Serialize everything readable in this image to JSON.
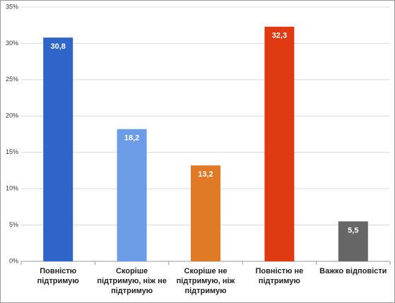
{
  "chart_data": {
    "type": "bar",
    "categories": [
      "Повністю підтримую",
      "Скоріше підтримую, ніж не підтримую",
      "Скоріше не підтримую, ніж підтримую",
      "Повністю не підтримую",
      "Важко відповісти"
    ],
    "values": [
      30.8,
      18.2,
      13.2,
      32.3,
      5.5
    ],
    "value_labels": [
      "30,8",
      "18,2",
      "13,2",
      "32,3",
      "5,5"
    ],
    "colors": [
      "#2f64c9",
      "#6c9ce8",
      "#e07a27",
      "#df3a12",
      "#666666"
    ],
    "ylim": [
      0,
      35
    ],
    "yticks": [
      {
        "value": 0,
        "label": "0%"
      },
      {
        "value": 5,
        "label": "5%"
      },
      {
        "value": 10,
        "label": "10%"
      },
      {
        "value": 15,
        "label": "15%"
      },
      {
        "value": 20,
        "label": "20%"
      },
      {
        "value": 25,
        "label": "25%"
      },
      {
        "value": 30,
        "label": "30%"
      },
      {
        "value": 35,
        "label": "35%"
      }
    ],
    "grid": true
  }
}
